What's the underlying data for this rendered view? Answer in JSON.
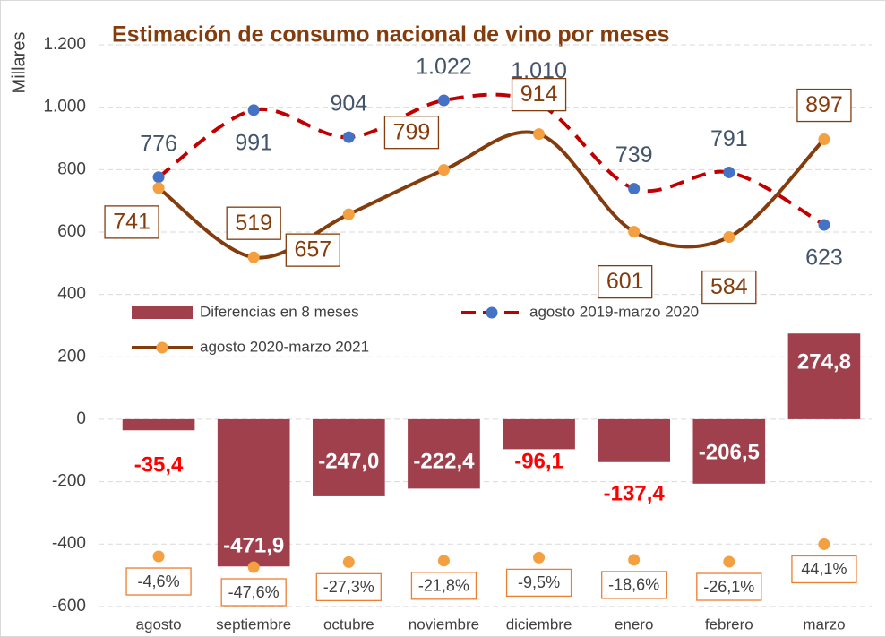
{
  "chart_data": {
    "type": "combo",
    "title": "Estimación de consumo nacional de vino por meses",
    "y_label": "Millares",
    "categories": [
      "agosto",
      "septiembre",
      "octubre",
      "noviembre",
      "diciembre",
      "enero",
      "febrero",
      "marzo"
    ],
    "ylim": [
      -632,
      1292
    ],
    "yticks": [
      {
        "value": 1200,
        "label": "1.200"
      },
      {
        "value": 1000,
        "label": "1.000"
      },
      800,
      600,
      400,
      200,
      0,
      -200,
      -400,
      -600
    ],
    "y2lim": [
      -245,
      2160
    ],
    "grid": true,
    "series": [
      {
        "name": "Diferencias en 8 meses",
        "type": "bar",
        "color": "#a0404c",
        "values": [
          -35.4,
          -471.9,
          -247.0,
          -222.4,
          -96.1,
          -137.4,
          -206.5,
          274.8
        ],
        "value_labels": [
          "-35,4",
          "-471,9",
          "-247,0",
          "-222,4",
          "-96,1",
          "-137,4",
          "-206,5",
          "274,8"
        ],
        "label_colors": [
          "#ff0000",
          "#ffffff",
          "#ffffff",
          "#ffffff",
          "#ff0000",
          "#ff0000",
          "#ffffff",
          "#ffffff"
        ]
      },
      {
        "name": "agosto 2019-marzo 2020",
        "type": "line",
        "color": "#c00000",
        "marker_color": "#4472c4",
        "dashed": true,
        "values": [
          776,
          991,
          904,
          1022,
          1010,
          739,
          791,
          623
        ],
        "value_labels": [
          "776",
          "991",
          "904",
          "1.022",
          "1.010",
          "739",
          "791",
          "623"
        ]
      },
      {
        "name": "agosto 2020-marzo 2021",
        "type": "line",
        "color": "#843c0c",
        "marker_color": "#f4a040",
        "dashed": false,
        "values": [
          741,
          519,
          657,
          799,
          914,
          601,
          584,
          897
        ]
      },
      {
        "type": "scatter",
        "axis": "y2",
        "marker_color": "#f4a040",
        "color": "#ed7d31",
        "values": [
          -4.6,
          -47.6,
          -27.3,
          -21.8,
          -9.5,
          -18.6,
          -26.1,
          44.1
        ],
        "value_labels": [
          "-4,6%",
          "-47,6%",
          "-27,3%",
          "-21,8%",
          "-9,5%",
          "-18,6%",
          "-26,1%",
          "44,1%"
        ]
      }
    ]
  }
}
